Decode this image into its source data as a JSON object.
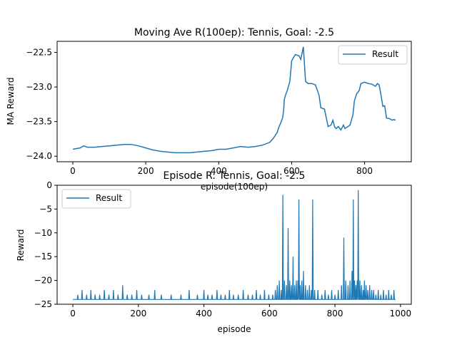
{
  "colors": {
    "series": "#1f77b4",
    "axis": "#000000",
    "legend_border": "#cccccc"
  },
  "chart_data": [
    {
      "type": "line",
      "title": "Moving Ave R(100ep): Tennis, Goal: -2.5",
      "xlabel": "episode(100ep)",
      "ylabel": "MA Reward",
      "xlim": [
        -43,
        928
      ],
      "ylim": [
        -24.08,
        -22.34
      ],
      "xticks": [
        0,
        200,
        400,
        600,
        800
      ],
      "xtick_labels": [
        "0",
        "200",
        "400",
        "600",
        "800"
      ],
      "yticks": [
        -24.0,
        -23.5,
        -23.0,
        -22.5
      ],
      "ytick_labels": [
        "−24.0",
        "−23.5",
        "−23.0",
        "−22.5"
      ],
      "grid": false,
      "legend": "top-right",
      "series": [
        {
          "name": "Result",
          "x": [
            0,
            10,
            20,
            30,
            40,
            60,
            80,
            100,
            120,
            140,
            160,
            180,
            200,
            220,
            240,
            260,
            280,
            300,
            320,
            340,
            360,
            380,
            400,
            420,
            440,
            460,
            480,
            500,
            520,
            540,
            550,
            560,
            565,
            570,
            575,
            578,
            580,
            583,
            588,
            595,
            600,
            610,
            620,
            625,
            628,
            632,
            638,
            645,
            655,
            665,
            670,
            675,
            680,
            690,
            700,
            708,
            713,
            718,
            722,
            728,
            735,
            742,
            746,
            752,
            760,
            768,
            772,
            778,
            785,
            790,
            800,
            810,
            820,
            830,
            835,
            840,
            845,
            850,
            855,
            860,
            870,
            875,
            880,
            885
          ],
          "y": [
            -23.9,
            -23.89,
            -23.88,
            -23.85,
            -23.87,
            -23.87,
            -23.86,
            -23.85,
            -23.84,
            -23.83,
            -23.83,
            -23.85,
            -23.88,
            -23.91,
            -23.93,
            -23.94,
            -23.95,
            -23.95,
            -23.95,
            -23.94,
            -23.93,
            -23.92,
            -23.9,
            -23.9,
            -23.88,
            -23.86,
            -23.87,
            -23.86,
            -23.84,
            -23.8,
            -23.74,
            -23.66,
            -23.58,
            -23.52,
            -23.45,
            -23.34,
            -23.18,
            -23.12,
            -23.05,
            -22.92,
            -22.62,
            -22.53,
            -22.55,
            -22.6,
            -22.52,
            -22.42,
            -22.92,
            -22.95,
            -22.95,
            -22.97,
            -23.04,
            -23.12,
            -23.3,
            -23.32,
            -23.57,
            -23.55,
            -23.48,
            -23.58,
            -23.6,
            -23.57,
            -23.62,
            -23.55,
            -23.6,
            -23.58,
            -23.55,
            -23.4,
            -23.2,
            -23.1,
            -23.05,
            -22.95,
            -22.93,
            -22.95,
            -22.96,
            -22.99,
            -22.95,
            -22.97,
            -23.12,
            -23.28,
            -23.27,
            -23.45,
            -23.46,
            -23.48,
            -23.47,
            -23.48
          ]
        }
      ]
    },
    {
      "type": "line",
      "title": "Episode R: Tennis, Goal: -2.5",
      "xlabel": "episode",
      "ylabel": "Reward",
      "xlim": [
        -48,
        1033
      ],
      "ylim": [
        -25,
        0
      ],
      "xticks": [
        0,
        200,
        400,
        600,
        800,
        1000
      ],
      "xtick_labels": [
        "0",
        "200",
        "400",
        "600",
        "800",
        "1000"
      ],
      "yticks": [
        -25,
        -20,
        -15,
        -10,
        -5,
        0
      ],
      "ytick_labels": [
        "−25",
        "−20",
        "−15",
        "−10",
        "−5",
        "0"
      ],
      "grid": false,
      "legend": "top-left",
      "baseline": -24,
      "series": [
        {
          "name": "Result",
          "spikes": [
            [
              15,
              -23
            ],
            [
              28,
              -22
            ],
            [
              42,
              -23
            ],
            [
              55,
              -22
            ],
            [
              68,
              -23
            ],
            [
              82,
              -23
            ],
            [
              96,
              -22
            ],
            [
              110,
              -23
            ],
            [
              124,
              -22
            ],
            [
              138,
              -23
            ],
            [
              152,
              -21
            ],
            [
              166,
              -23
            ],
            [
              180,
              -23
            ],
            [
              195,
              -22
            ],
            [
              210,
              -23
            ],
            [
              232,
              -23
            ],
            [
              250,
              -22
            ],
            [
              270,
              -23
            ],
            [
              300,
              -23
            ],
            [
              330,
              -23
            ],
            [
              355,
              -22
            ],
            [
              380,
              -23
            ],
            [
              400,
              -22
            ],
            [
              412,
              -23
            ],
            [
              425,
              -23
            ],
            [
              440,
              -22
            ],
            [
              452,
              -23
            ],
            [
              465,
              -23
            ],
            [
              478,
              -22
            ],
            [
              490,
              -23
            ],
            [
              505,
              -23
            ],
            [
              520,
              -22
            ],
            [
              535,
              -23
            ],
            [
              548,
              -23
            ],
            [
              560,
              -22
            ],
            [
              572,
              -23
            ],
            [
              585,
              -22
            ],
            [
              598,
              -23
            ],
            [
              610,
              -23
            ],
            [
              618,
              -22
            ],
            [
              624,
              -21
            ],
            [
              630,
              -20
            ],
            [
              636,
              -22
            ],
            [
              641,
              -2
            ],
            [
              646,
              -20
            ],
            [
              652,
              -21
            ],
            [
              657,
              -9
            ],
            [
              662,
              -20
            ],
            [
              667,
              -21
            ],
            [
              672,
              -15
            ],
            [
              677,
              -21
            ],
            [
              682,
              -20
            ],
            [
              687,
              -20
            ],
            [
              690,
              -3
            ],
            [
              694,
              -21
            ],
            [
              699,
              -20
            ],
            [
              704,
              -18
            ],
            [
              710,
              -21
            ],
            [
              716,
              -22
            ],
            [
              722,
              -21
            ],
            [
              728,
              -22
            ],
            [
              732,
              -3
            ],
            [
              738,
              -22
            ],
            [
              748,
              -22
            ],
            [
              760,
              -23
            ],
            [
              770,
              -22
            ],
            [
              780,
              -23
            ],
            [
              790,
              -22
            ],
            [
              800,
              -23
            ],
            [
              810,
              -22
            ],
            [
              820,
              -21
            ],
            [
              827,
              -11
            ],
            [
              833,
              -20
            ],
            [
              840,
              -21
            ],
            [
              846,
              -20
            ],
            [
              852,
              -18
            ],
            [
              856,
              -3
            ],
            [
              860,
              -20
            ],
            [
              864,
              -21
            ],
            [
              868,
              -20
            ],
            [
              871,
              -1
            ],
            [
              876,
              -20
            ],
            [
              881,
              -21
            ],
            [
              886,
              -22
            ],
            [
              890,
              -20
            ],
            [
              895,
              -21
            ],
            [
              900,
              -22
            ],
            [
              906,
              -21
            ],
            [
              912,
              -22
            ],
            [
              918,
              -22
            ],
            [
              925,
              -23
            ],
            [
              932,
              -22
            ],
            [
              940,
              -23
            ],
            [
              948,
              -22
            ],
            [
              956,
              -23
            ],
            [
              964,
              -22
            ],
            [
              972,
              -23
            ],
            [
              980,
              -22
            ]
          ],
          "x_end": 985
        }
      ]
    }
  ]
}
